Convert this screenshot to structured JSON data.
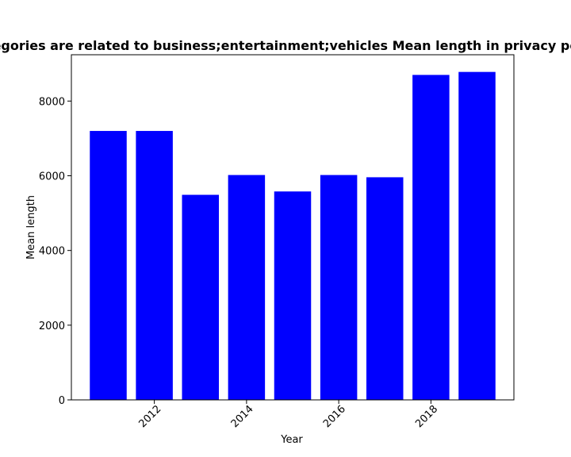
{
  "chart_data": {
    "type": "bar",
    "title": "Categories are related to business;entertainment;vehicles Mean length in privacy policies",
    "xlabel": "Year",
    "ylabel": "Mean length",
    "x": [
      2011,
      2012,
      2013,
      2014,
      2015,
      2016,
      2017,
      2018,
      2019
    ],
    "values": [
      7200,
      7200,
      5490,
      6020,
      5580,
      6020,
      5960,
      8700,
      8780
    ],
    "xticks": [
      2012,
      2014,
      2016,
      2018
    ],
    "yticks": [
      0,
      2000,
      4000,
      6000,
      8000
    ],
    "xlim": [
      2010.2,
      2019.8
    ],
    "ylim": [
      0,
      9240
    ],
    "bar_color": "#0000ff",
    "grid": false,
    "legend": "none"
  }
}
